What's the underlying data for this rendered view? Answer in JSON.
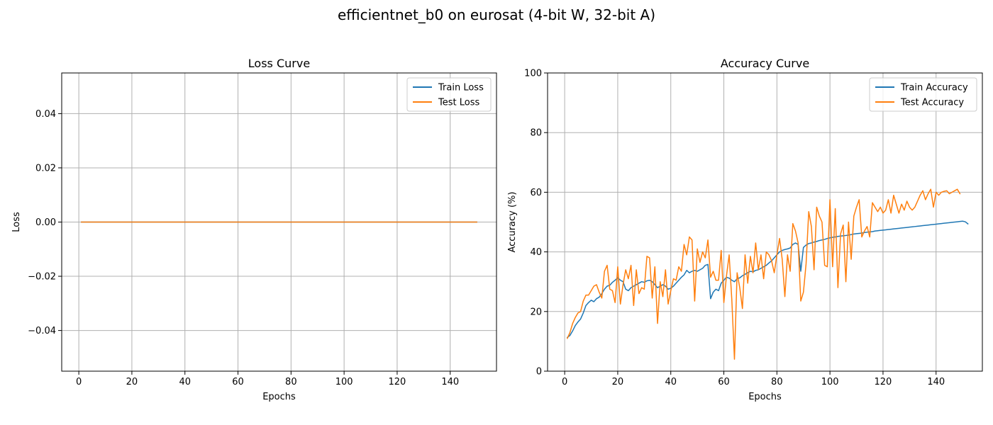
{
  "figure": {
    "title": "efficientnet_b0 on eurosat (4-bit W, 32-bit A)"
  },
  "colors": {
    "train": "#1f77b4",
    "test": "#ff7f0e"
  },
  "chart_data": [
    {
      "type": "line",
      "title": "Loss Curve",
      "xlabel": "Epochs",
      "ylabel": "Loss",
      "xlim": [
        -6.45,
        157.45
      ],
      "ylim": [
        -0.055,
        0.055
      ],
      "xticks": [
        0,
        20,
        40,
        60,
        80,
        100,
        120,
        140
      ],
      "xtick_labels": [
        "0",
        "20",
        "40",
        "60",
        "80",
        "100",
        "120",
        "140"
      ],
      "yticks": [
        -0.04,
        -0.02,
        0.0,
        0.02,
        0.04
      ],
      "ytick_labels": [
        "−0.04",
        "−0.02",
        "0.00",
        "0.02",
        "0.04"
      ],
      "grid": true,
      "legend": "top-right",
      "series": [
        {
          "name": "Train Loss",
          "x_start": 1,
          "x_end": 150,
          "constant": 0.0
        },
        {
          "name": "Test Loss",
          "x_start": 1,
          "x_end": 150,
          "constant": 0.0
        }
      ]
    },
    {
      "type": "line",
      "title": "Accuracy Curve",
      "xlabel": "Epochs",
      "ylabel": "Accuracy (%)",
      "xlim": [
        -6.45,
        157.45
      ],
      "ylim": [
        0,
        100
      ],
      "xticks": [
        0,
        20,
        40,
        60,
        80,
        100,
        120,
        140
      ],
      "xtick_labels": [
        "0",
        "20",
        "40",
        "60",
        "80",
        "100",
        "120",
        "140"
      ],
      "yticks": [
        0,
        20,
        40,
        60,
        80,
        100
      ],
      "ytick_labels": [
        "0",
        "20",
        "40",
        "60",
        "80",
        "100"
      ],
      "grid": true,
      "legend": "top-right",
      "series": [
        {
          "name": "Train Accuracy",
          "x_start": 1,
          "values": [
            11.3,
            12,
            13.5,
            15.3,
            16.5,
            17.5,
            19.5,
            22,
            23,
            23.8,
            23.3,
            24.3,
            24.8,
            26,
            27.5,
            28.5,
            28.8,
            29.8,
            30.5,
            31.3,
            30.5,
            30,
            27.5,
            27,
            28,
            28.5,
            29,
            29.5,
            30,
            29.8,
            30.3,
            30.5,
            30,
            29,
            28,
            28.5,
            29,
            28.5,
            27.5,
            27.8,
            28.5,
            29.5,
            30.5,
            31.5,
            32.3,
            33.8,
            33,
            33.5,
            33.8,
            33.5,
            34,
            34.5,
            35.5,
            35.8,
            24.3,
            26.5,
            27.5,
            27,
            29.5,
            30.5,
            31.5,
            31.2,
            30.5,
            30,
            31,
            31.3,
            32,
            32.5,
            33,
            33.5,
            33.3,
            33.8,
            34,
            34.5,
            35,
            35.5,
            36.3,
            37,
            38,
            39,
            40,
            40.5,
            40.8,
            41,
            41.3,
            42.5,
            43,
            42.5,
            33.5,
            41.5,
            42.3,
            42.8,
            43,
            43.3,
            43.5,
            43.8,
            44,
            44.2,
            44.5,
            44.7,
            44.9,
            45,
            45.2,
            45.3,
            45.4,
            45.5,
            45.6,
            45.8,
            46,
            46.1,
            46.2,
            46.3,
            46.5,
            46.6,
            46.7,
            46.8,
            47,
            47.1,
            47.2,
            47.3,
            47.4,
            47.5,
            47.6,
            47.7,
            47.8,
            47.9,
            48,
            48.1,
            48.2,
            48.3,
            48.4,
            48.5,
            48.6,
            48.7,
            48.8,
            48.9,
            49,
            49.1,
            49.2,
            49.3,
            49.4,
            49.5,
            49.6,
            49.7,
            49.8,
            49.9,
            50,
            50.1,
            50.2,
            50.3,
            50.1,
            49.4
          ]
        },
        {
          "name": "Test Accuracy",
          "x_start": 1,
          "values": [
            11,
            13,
            16,
            18,
            19.5,
            20,
            23.5,
            25.5,
            25.5,
            27,
            28.5,
            29,
            26.5,
            24.5,
            33.5,
            35.5,
            27.5,
            27,
            23,
            35,
            22.5,
            29,
            34,
            31,
            35.5,
            22,
            34,
            26,
            28,
            27.5,
            38.5,
            38,
            24.5,
            35,
            16,
            30,
            25,
            34,
            22.5,
            27,
            31,
            30.5,
            35,
            33.5,
            42.5,
            39,
            45,
            44,
            23.5,
            41,
            36.5,
            40,
            38,
            44,
            31.5,
            33.5,
            30.5,
            30.5,
            40.5,
            23,
            32,
            39,
            24,
            4,
            33,
            28,
            21,
            39,
            29.5,
            38.5,
            33,
            43,
            34,
            39,
            31,
            40,
            39,
            37,
            33,
            39,
            44.5,
            37.5,
            25,
            39,
            33.5,
            49.5,
            47,
            43,
            23.5,
            26.5,
            36,
            53.5,
            48.5,
            34,
            55,
            52,
            50,
            35.5,
            35,
            57.5,
            35,
            54.5,
            28,
            46,
            49,
            30,
            50,
            37.5,
            52,
            55,
            57.5,
            45,
            47,
            48.5,
            45,
            56.5,
            55,
            53.5,
            55,
            53,
            54,
            57.5,
            53,
            59,
            56,
            53,
            56,
            54,
            57,
            55,
            54,
            55,
            57,
            59,
            60.5,
            57.5,
            59.5,
            61,
            55,
            60,
            59,
            60,
            60.3,
            60.5,
            59.5,
            60,
            60.5,
            61,
            59.5
          ]
        }
      ]
    }
  ]
}
